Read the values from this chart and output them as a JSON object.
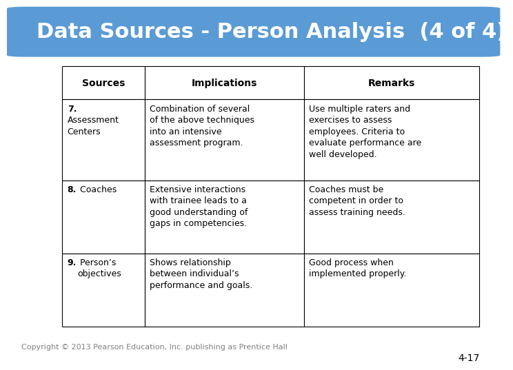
{
  "title": "Data Sources - Person Analysis  (4 of 4)",
  "title_bg_color": "#5B9BD5",
  "title_text_color": "#FFFFFF",
  "bg_color": "#FFFFFF",
  "header": [
    "Sources",
    "Implications",
    "Remarks"
  ],
  "rows": [
    {
      "source_bold": "7.",
      "source_normal": "\n\nAssessment\nCenters",
      "implication": "Combination of several\nof the above techniques\ninto an intensive\nassessment program.",
      "remark": "Use multiple raters and\nexercises to assess\nemployees. Criteria to\nevaluate performance are\nwell developed."
    },
    {
      "source_bold": "8.",
      "source_normal": " Coaches",
      "implication": "Extensive interactions\nwith trainee leads to a\ngood understanding of\ngaps in competencies.",
      "remark": "Coaches must be\ncompetent in order to\nassess training needs."
    },
    {
      "source_bold": "9.",
      "source_normal": " Person’s\nobjectives",
      "implication": "Shows relationship\nbetween individual’s\nperformance and goals.",
      "remark": "Good process when\nimplemented properly."
    }
  ],
  "copyright": "Copyright © 2013 Pearson Education, Inc. publishing as Prentice Hall",
  "page_num": "4-17",
  "title_fontsize": 22,
  "header_fontsize": 10,
  "body_fontsize": 9,
  "copyright_fontsize": 8,
  "pagenum_fontsize": 10
}
